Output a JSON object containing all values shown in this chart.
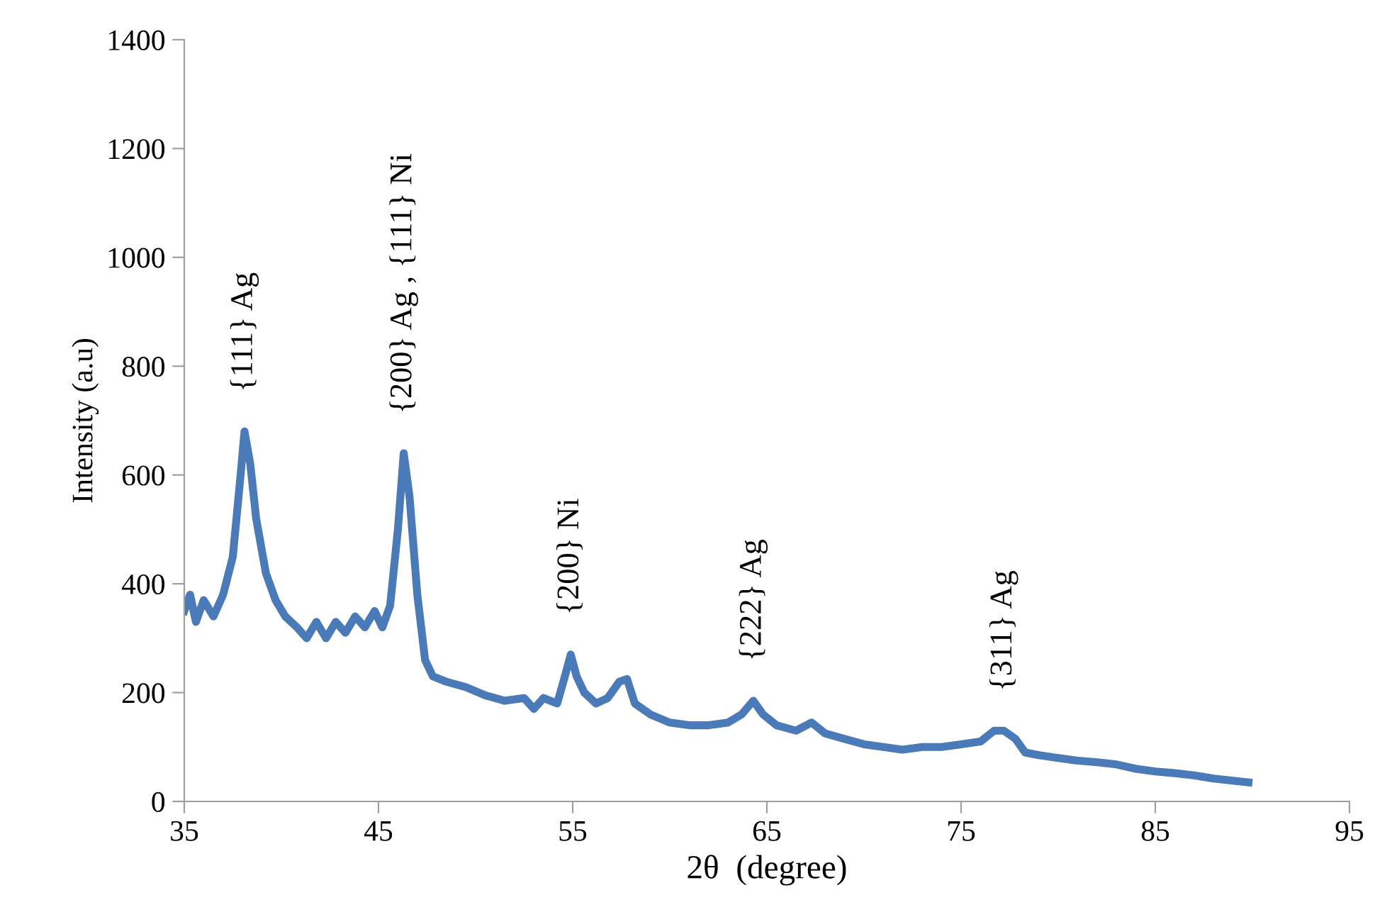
{
  "chart_data": {
    "type": "line",
    "xlabel": "2θ  (degree)",
    "ylabel": "Intensity (a.u)",
    "xlim": [
      35,
      95
    ],
    "xticks": [
      35,
      45,
      55,
      65,
      75,
      85,
      95
    ],
    "ylim": [
      0,
      1400
    ],
    "yticks": [
      0,
      200,
      400,
      600,
      800,
      1000,
      1200,
      1400
    ],
    "grid": false,
    "marker": "none",
    "line_style": "solid",
    "series": [
      {
        "color": "#4a7ab8",
        "x": [
          35,
          35.3,
          35.6,
          36,
          36.5,
          37,
          37.5,
          37.9,
          38.1,
          38.4,
          38.7,
          39.2,
          39.7,
          40.2,
          40.8,
          41.3,
          41.8,
          42.3,
          42.8,
          43.3,
          43.8,
          44.3,
          44.8,
          45.2,
          45.6,
          46.0,
          46.3,
          46.6,
          47.0,
          47.4,
          47.8,
          48.5,
          49.5,
          50.5,
          51.5,
          52.5,
          53,
          53.5,
          54.2,
          54.6,
          54.9,
          55.2,
          55.6,
          56.2,
          56.8,
          57.4,
          57.8,
          58.2,
          59,
          60,
          61,
          62,
          63,
          63.7,
          64.3,
          64.8,
          65.5,
          66.5,
          67.3,
          68,
          69,
          70,
          71,
          72,
          73,
          74,
          75,
          76,
          76.7,
          77.2,
          77.8,
          78.3,
          79,
          80,
          81,
          82,
          83,
          84,
          85,
          86,
          87,
          88,
          89,
          89.8
        ],
        "values": [
          350,
          380,
          330,
          370,
          340,
          380,
          450,
          600,
          680,
          620,
          520,
          420,
          370,
          340,
          320,
          300,
          330,
          300,
          330,
          310,
          340,
          320,
          350,
          320,
          360,
          500,
          640,
          560,
          380,
          260,
          230,
          220,
          210,
          195,
          185,
          190,
          170,
          190,
          180,
          230,
          270,
          230,
          200,
          180,
          190,
          220,
          225,
          180,
          160,
          145,
          140,
          140,
          145,
          160,
          185,
          160,
          140,
          130,
          145,
          125,
          115,
          105,
          100,
          95,
          100,
          100,
          105,
          110,
          130,
          130,
          115,
          90,
          85,
          80,
          75,
          72,
          68,
          60,
          55,
          52,
          48,
          42,
          38,
          35
        ]
      }
    ],
    "annotations": [
      {
        "text": "{111} Ag",
        "x": 38.1,
        "y": 680
      },
      {
        "text": "{200} Ag , {111} Ni",
        "x": 46.3,
        "y": 640
      },
      {
        "text": "{200} Ni",
        "x": 54.9,
        "y": 270
      },
      {
        "text": "{222} Ag",
        "x": 64.3,
        "y": 185
      },
      {
        "text": "{311} Ag",
        "x": 77.2,
        "y": 130
      }
    ]
  }
}
